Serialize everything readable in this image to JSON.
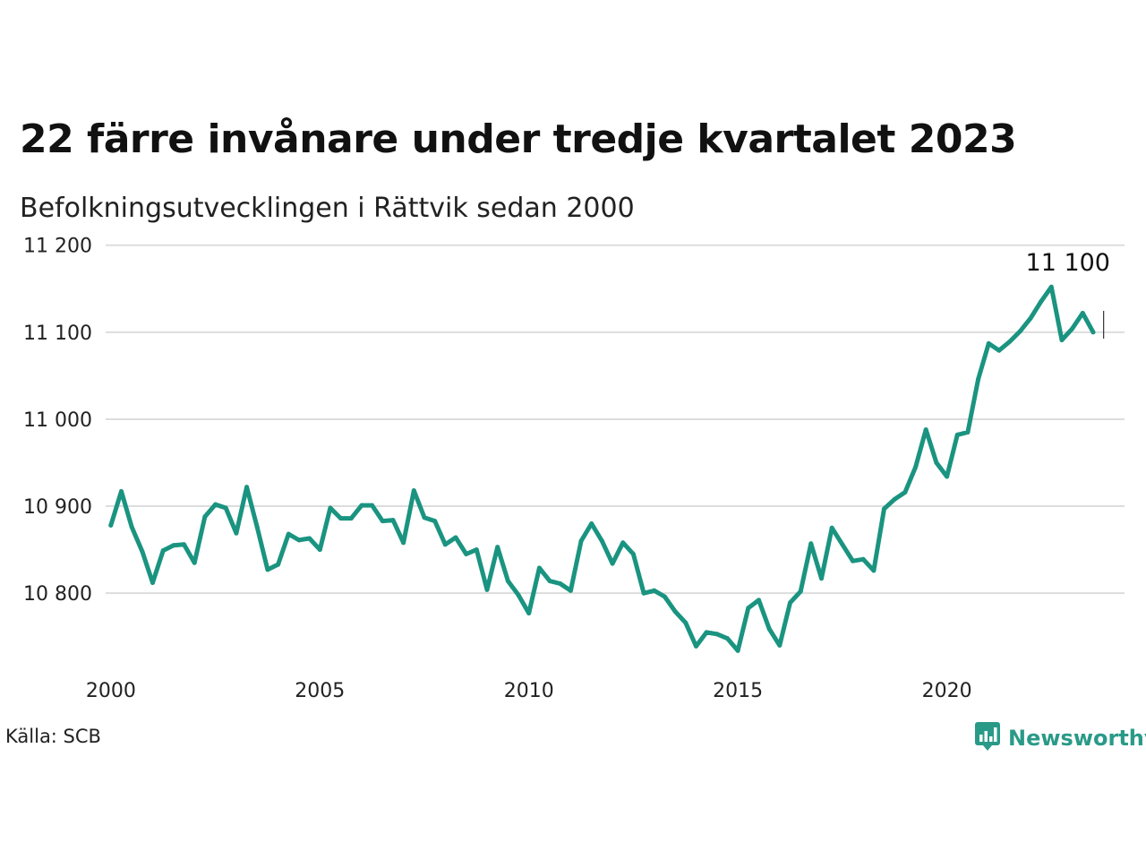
{
  "title": "22 färre invånare under tredje kvartalet 2023",
  "subtitle": "Befolkningsutvecklingen i Rättvik sedan 2000",
  "source": "Källa: SCB",
  "brand": {
    "name": "Newsworthy",
    "logo_icon": "bar-chart-speech-icon"
  },
  "colors": {
    "line": "#1a9480",
    "grid": "#dddddd",
    "brand": "#2a9a88"
  },
  "chart_data": {
    "type": "line",
    "title": "22 färre invånare under tredje kvartalet 2023",
    "subtitle": "Befolkningsutvecklingen i Rättvik sedan 2000",
    "xlabel": "",
    "ylabel": "",
    "xlim": [
      1999.875,
      2024.25
    ],
    "ylim": [
      10725,
      11210
    ],
    "x_ticks": [
      2000,
      2005,
      2010,
      2015,
      2020
    ],
    "x_tick_labels": [
      "2000",
      "2005",
      "2010",
      "2015",
      "2020"
    ],
    "y_ticks": [
      10800,
      10900,
      11000,
      11100,
      11200
    ],
    "y_tick_labels": [
      "10 800",
      "10 900",
      "11 000",
      "11 100",
      "11 200"
    ],
    "grid": "horizontal",
    "annotation": {
      "label": "11 100",
      "x": 2023.75,
      "value": 11100
    },
    "series": [
      {
        "values": [
          [
            2000.0,
            10878
          ],
          [
            2000.25,
            10917
          ],
          [
            2000.5,
            10876
          ],
          [
            2000.75,
            10848
          ],
          [
            2001.0,
            10812
          ],
          [
            2001.25,
            10849
          ],
          [
            2001.5,
            10855
          ],
          [
            2001.75,
            10856
          ],
          [
            2002.0,
            10835
          ],
          [
            2002.25,
            10888
          ],
          [
            2002.5,
            10902
          ],
          [
            2002.75,
            10898
          ],
          [
            2003.0,
            10869
          ],
          [
            2003.25,
            10922
          ],
          [
            2003.5,
            10876
          ],
          [
            2003.75,
            10827
          ],
          [
            2004.0,
            10833
          ],
          [
            2004.25,
            10868
          ],
          [
            2004.5,
            10861
          ],
          [
            2004.75,
            10863
          ],
          [
            2005.0,
            10850
          ],
          [
            2005.25,
            10898
          ],
          [
            2005.5,
            10886
          ],
          [
            2005.75,
            10886
          ],
          [
            2006.0,
            10901
          ],
          [
            2006.25,
            10901
          ],
          [
            2006.5,
            10883
          ],
          [
            2006.75,
            10884
          ],
          [
            2007.0,
            10858
          ],
          [
            2007.25,
            10918
          ],
          [
            2007.5,
            10887
          ],
          [
            2007.75,
            10883
          ],
          [
            2008.0,
            10856
          ],
          [
            2008.25,
            10864
          ],
          [
            2008.5,
            10845
          ],
          [
            2008.75,
            10850
          ],
          [
            2009.0,
            10804
          ],
          [
            2009.25,
            10853
          ],
          [
            2009.5,
            10814
          ],
          [
            2009.75,
            10798
          ],
          [
            2010.0,
            10777
          ],
          [
            2010.25,
            10829
          ],
          [
            2010.5,
            10814
          ],
          [
            2010.75,
            10811
          ],
          [
            2011.0,
            10803
          ],
          [
            2011.25,
            10860
          ],
          [
            2011.5,
            10880
          ],
          [
            2011.75,
            10860
          ],
          [
            2012.0,
            10834
          ],
          [
            2012.25,
            10858
          ],
          [
            2012.5,
            10845
          ],
          [
            2012.75,
            10800
          ],
          [
            2013.0,
            10803
          ],
          [
            2013.25,
            10796
          ],
          [
            2013.5,
            10779
          ],
          [
            2013.75,
            10766
          ],
          [
            2014.0,
            10739
          ],
          [
            2014.25,
            10755
          ],
          [
            2014.5,
            10753
          ],
          [
            2014.75,
            10748
          ],
          [
            2015.0,
            10734
          ],
          [
            2015.25,
            10783
          ],
          [
            2015.5,
            10792
          ],
          [
            2015.75,
            10759
          ],
          [
            2016.0,
            10740
          ],
          [
            2016.25,
            10789
          ],
          [
            2016.5,
            10802
          ],
          [
            2016.75,
            10857
          ],
          [
            2017.0,
            10817
          ],
          [
            2017.25,
            10875
          ],
          [
            2017.5,
            10856
          ],
          [
            2017.75,
            10837
          ],
          [
            2018.0,
            10839
          ],
          [
            2018.25,
            10826
          ],
          [
            2018.5,
            10897
          ],
          [
            2018.75,
            10908
          ],
          [
            2019.0,
            10916
          ],
          [
            2019.25,
            10945
          ],
          [
            2019.5,
            10988
          ],
          [
            2019.75,
            10950
          ],
          [
            2020.0,
            10934
          ],
          [
            2020.25,
            10982
          ],
          [
            2020.5,
            10985
          ],
          [
            2020.75,
            11046
          ],
          [
            2021.0,
            11087
          ],
          [
            2021.25,
            11079
          ],
          [
            2021.5,
            11089
          ],
          [
            2021.75,
            11101
          ],
          [
            2022.0,
            11116
          ],
          [
            2022.25,
            11135
          ],
          [
            2022.5,
            11152
          ],
          [
            2022.75,
            11091
          ],
          [
            2023.0,
            11104
          ],
          [
            2023.25,
            11122
          ],
          [
            2023.5,
            11100
          ]
        ]
      }
    ]
  }
}
